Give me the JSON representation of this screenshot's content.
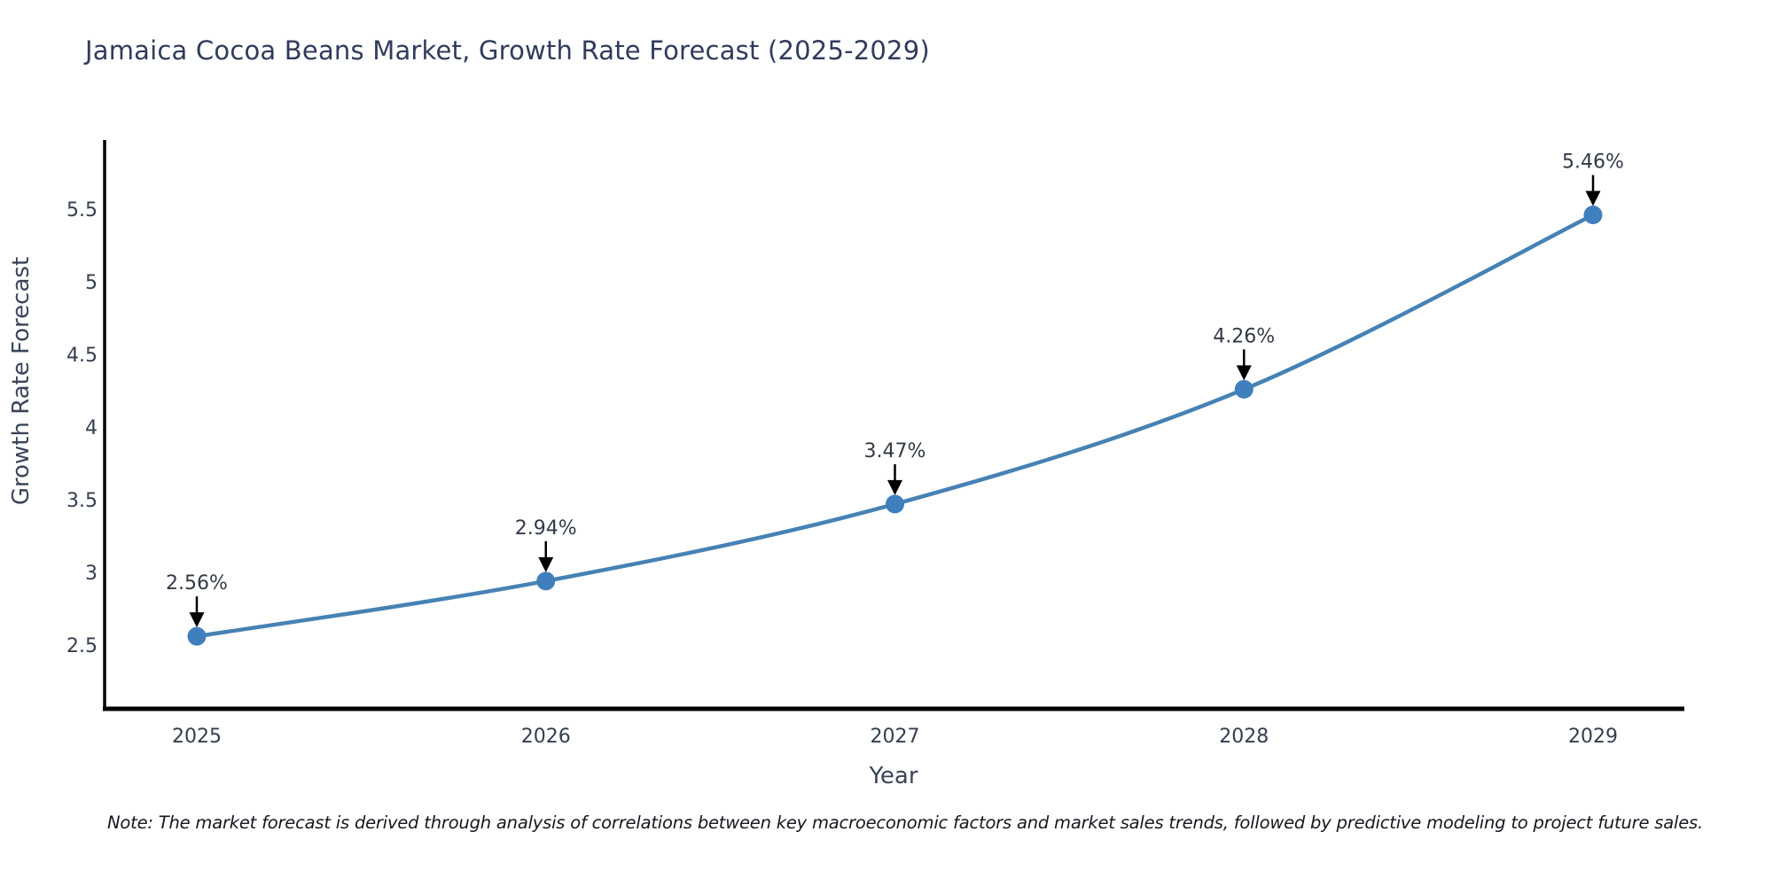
{
  "title": "Jamaica Cocoa Beans Market, Growth Rate Forecast (2025-2029)",
  "note": "Note: The market forecast is derived through analysis of correlations between key macroeconomic factors and market sales trends, followed by predictive modeling to project future sales.",
  "chart_data": {
    "type": "line",
    "categories": [
      "2025",
      "2026",
      "2027",
      "2028",
      "2029"
    ],
    "series": [
      {
        "name": "Growth Rate Forecast",
        "values": [
          2.56,
          2.94,
          3.47,
          4.26,
          5.46
        ]
      }
    ],
    "point_labels": [
      "2.56%",
      "2.94%",
      "3.47%",
      "4.26%",
      "5.46%"
    ],
    "title": "Jamaica Cocoa Beans Market, Growth Rate Forecast (2025-2029)",
    "xlabel": "Year",
    "ylabel": "Growth Rate Forecast",
    "yticks": [
      "2.5",
      "3",
      "3.5",
      "4",
      "4.5",
      "5",
      "5.5"
    ],
    "ylim": [
      2.1,
      5.9
    ],
    "grid": false,
    "legend": false,
    "colors": {
      "line": "#4682b4",
      "marker": "#3f7fbd",
      "axis": "#000000",
      "annotation_arrow": "#000000",
      "title_text": "#313b5c",
      "tick_text": "#353e4e"
    }
  }
}
